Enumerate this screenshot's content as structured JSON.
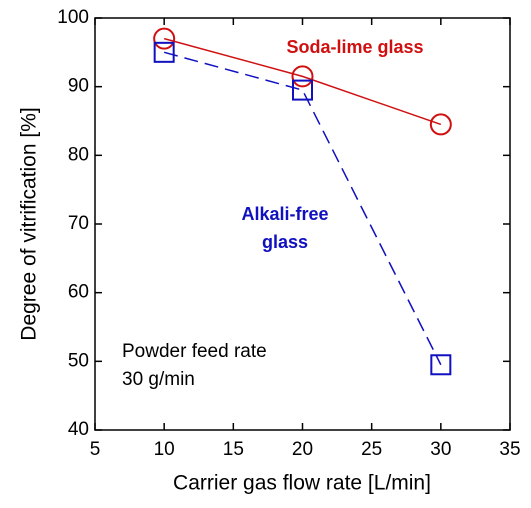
{
  "chart_data": {
    "type": "line",
    "x_label": "Carrier gas flow rate [L/min]",
    "y_label": "Degree of vitrification [%]",
    "x": [
      10,
      20,
      30
    ],
    "series": [
      {
        "name": "Soda-lime glass",
        "color": "#d01010",
        "marker": "circle",
        "dashed": false,
        "values": [
          97,
          91.5,
          84.5
        ]
      },
      {
        "name": "Alkali-free glass",
        "color": "#1010c0",
        "marker": "square",
        "dashed": true,
        "values": [
          95,
          89.5,
          49.5
        ]
      }
    ],
    "annotation": [
      "Powder feed rate",
      "30 g/min"
    ],
    "xlim": [
      5,
      35
    ],
    "xticks": [
      5,
      10,
      15,
      20,
      25,
      30,
      35
    ],
    "ylim": [
      40,
      100
    ],
    "yticks": [
      40,
      50,
      60,
      70,
      80,
      90,
      100
    ],
    "grid": false
  }
}
